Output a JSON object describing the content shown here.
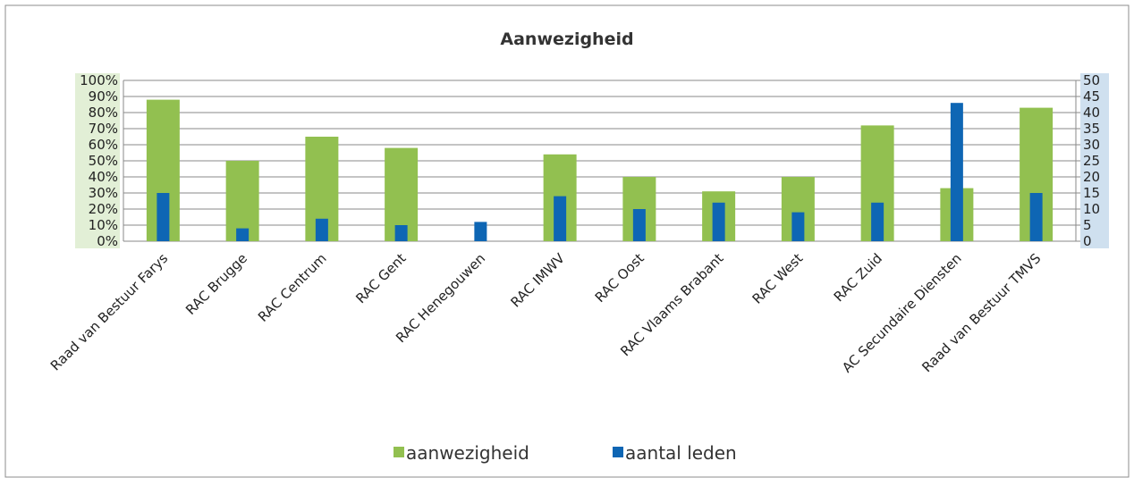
{
  "chart_data": {
    "type": "bar",
    "title": "Aanwezigheid",
    "categories": [
      "Raad van Bestuur Farys",
      "RAC Brugge",
      "RAC Centrum",
      "RAC Gent",
      "RAC Henegouwen",
      "RAC IMWV",
      "RAC Oost",
      "RAC Vlaams Brabant",
      "RAC West",
      "RAC Zuid",
      "AC Secundaire Diensten",
      "Raad van Bestuur TMVS"
    ],
    "series": [
      {
        "name": "aanwezigheid",
        "color": "#92c050",
        "values": [
          88,
          50,
          65,
          58,
          0,
          54,
          40,
          31,
          40,
          72,
          33,
          83
        ]
      },
      {
        "name": "aantal leden",
        "color": "#0e66b4",
        "axis": "y2",
        "values": [
          15,
          4,
          7,
          5,
          6,
          14,
          10,
          12,
          9,
          12,
          43,
          15
        ]
      }
    ],
    "ylim": [
      0,
      100
    ],
    "yticks": [
      {
        "value": 0,
        "label": "0%"
      },
      {
        "value": 10,
        "label": "10%"
      },
      {
        "value": 20,
        "label": "20%"
      },
      {
        "value": 30,
        "label": "30%"
      },
      {
        "value": 40,
        "label": "40%"
      },
      {
        "value": 50,
        "label": "50%"
      },
      {
        "value": 60,
        "label": "60%"
      },
      {
        "value": 70,
        "label": "70%"
      },
      {
        "value": 80,
        "label": "80%"
      },
      {
        "value": 90,
        "label": "90%"
      },
      {
        "value": 100,
        "label": "100%"
      }
    ],
    "y2lim": [
      0,
      50
    ],
    "y2ticks": [
      0,
      5,
      10,
      15,
      20,
      25,
      30,
      35,
      40,
      45,
      50
    ],
    "grid": true,
    "legend": "bottom"
  }
}
